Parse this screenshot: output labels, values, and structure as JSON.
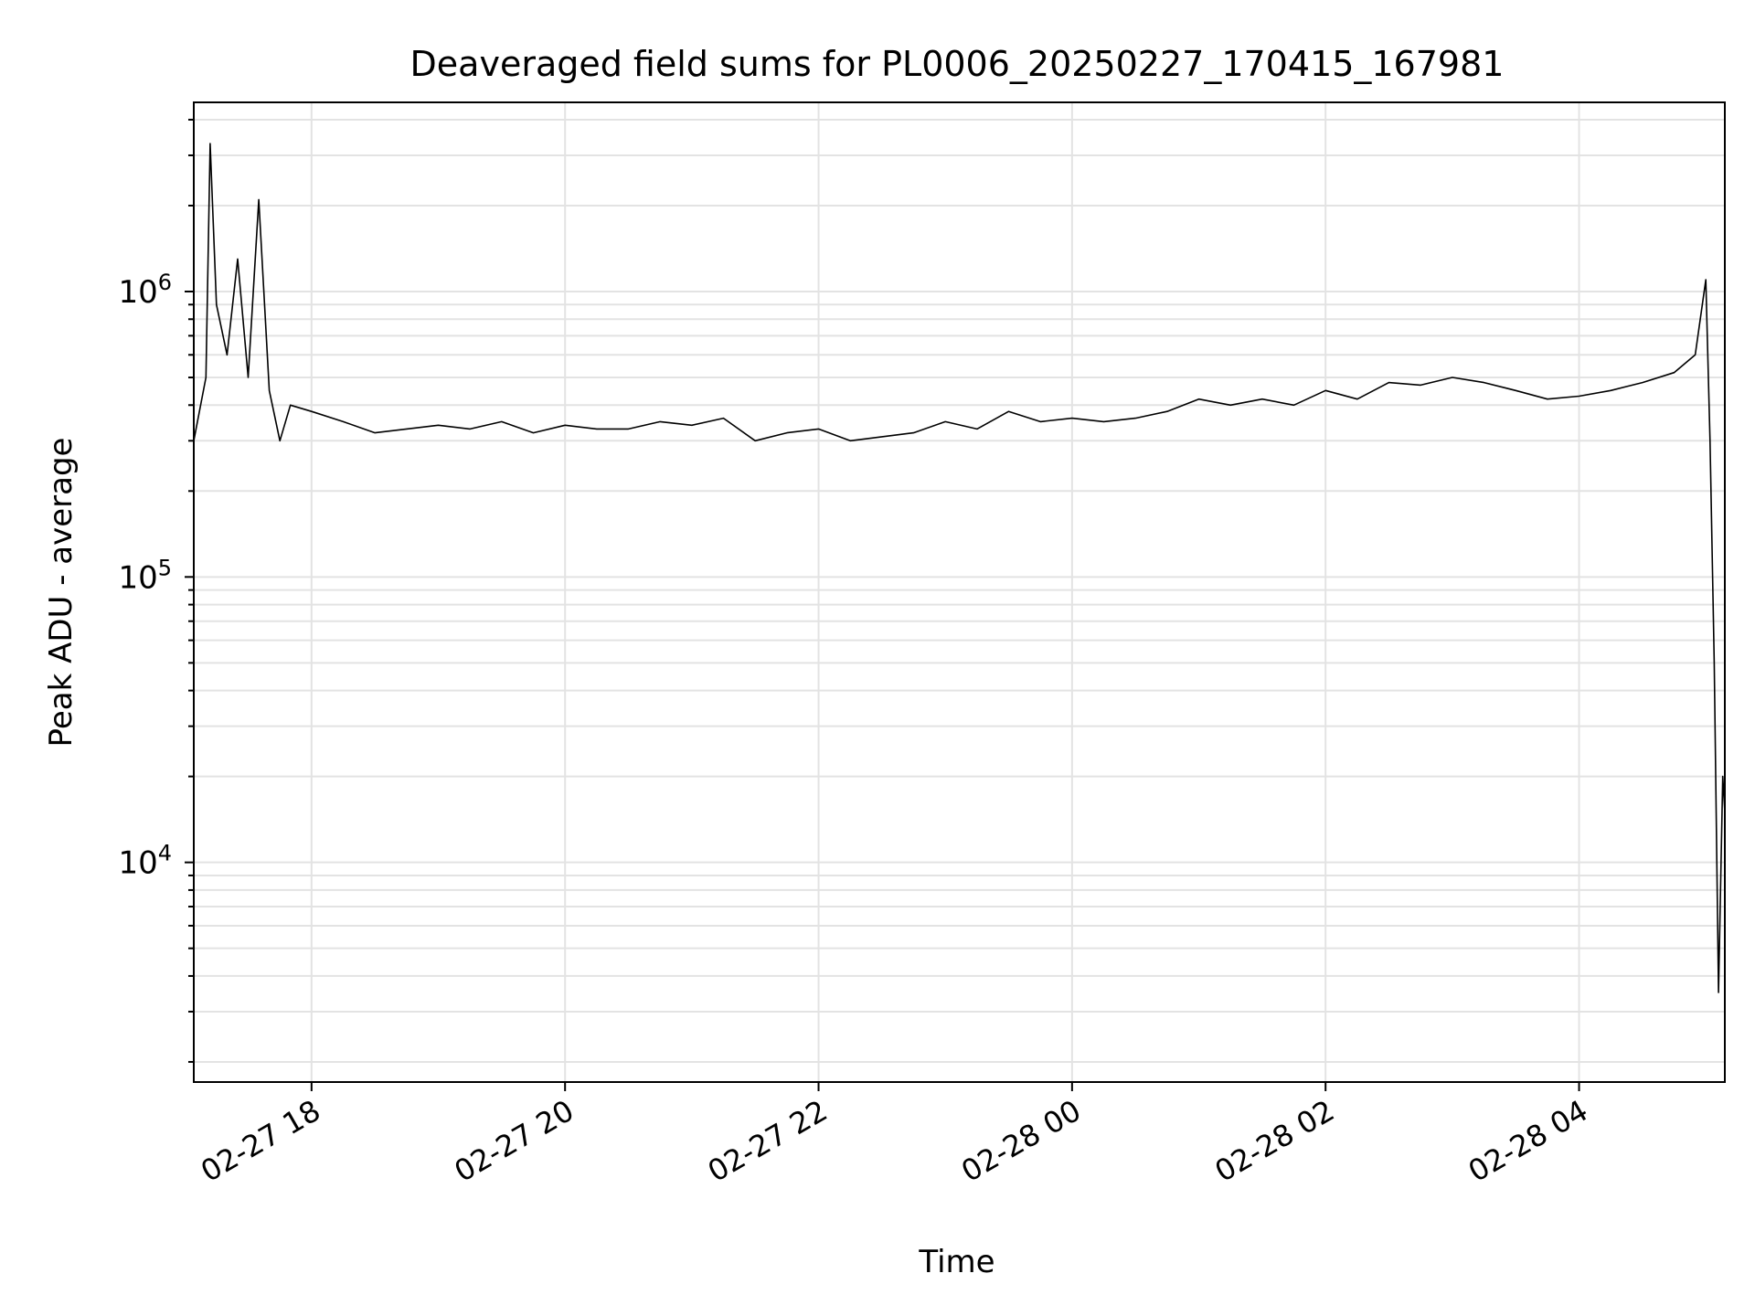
{
  "chart_data": {
    "type": "line",
    "title": "Deaveraged field sums for PL0006_20250227_170415_167981",
    "xlabel": "Time",
    "ylabel": "Peak ADU - average",
    "x_range": [
      "2025-02-27T17:04:15",
      "2025-02-28T05:09:00"
    ],
    "y_range": [
      1700,
      4600000
    ],
    "y_scale": "log",
    "grid": true,
    "line_color": "#000000",
    "x_ticks": [
      {
        "value": "2025-02-27T18:00:00",
        "label": "02-27 18"
      },
      {
        "value": "2025-02-27T20:00:00",
        "label": "02-27 20"
      },
      {
        "value": "2025-02-27T22:00:00",
        "label": "02-27 22"
      },
      {
        "value": "2025-02-28T00:00:00",
        "label": "02-28 00"
      },
      {
        "value": "2025-02-28T02:00:00",
        "label": "02-28 02"
      },
      {
        "value": "2025-02-28T04:00:00",
        "label": "02-28 04"
      }
    ],
    "y_ticks": [
      {
        "value": 10000,
        "base": "10",
        "exp": "4"
      },
      {
        "value": 100000,
        "base": "10",
        "exp": "5"
      },
      {
        "value": 1000000,
        "base": "10",
        "exp": "6"
      }
    ],
    "series": [
      {
        "x": [
          "2025-02-27T17:04:15",
          "2025-02-27T17:10:00",
          "2025-02-27T17:12:00",
          "2025-02-27T17:15:00",
          "2025-02-27T17:20:00",
          "2025-02-27T17:25:00",
          "2025-02-27T17:30:00",
          "2025-02-27T17:35:00",
          "2025-02-27T17:40:00",
          "2025-02-27T17:45:00",
          "2025-02-27T17:50:00",
          "2025-02-27T18:00:00",
          "2025-02-27T18:15:00",
          "2025-02-27T18:30:00",
          "2025-02-27T18:45:00",
          "2025-02-27T19:00:00",
          "2025-02-27T19:15:00",
          "2025-02-27T19:30:00",
          "2025-02-27T19:45:00",
          "2025-02-27T20:00:00",
          "2025-02-27T20:15:00",
          "2025-02-27T20:30:00",
          "2025-02-27T20:45:00",
          "2025-02-27T21:00:00",
          "2025-02-27T21:15:00",
          "2025-02-27T21:30:00",
          "2025-02-27T21:45:00",
          "2025-02-27T22:00:00",
          "2025-02-27T22:15:00",
          "2025-02-27T22:30:00",
          "2025-02-27T22:45:00",
          "2025-02-27T23:00:00",
          "2025-02-27T23:15:00",
          "2025-02-27T23:30:00",
          "2025-02-27T23:45:00",
          "2025-02-28T00:00:00",
          "2025-02-28T00:15:00",
          "2025-02-28T00:30:00",
          "2025-02-28T00:45:00",
          "2025-02-28T01:00:00",
          "2025-02-28T01:15:00",
          "2025-02-28T01:30:00",
          "2025-02-28T01:45:00",
          "2025-02-28T02:00:00",
          "2025-02-28T02:15:00",
          "2025-02-28T02:30:00",
          "2025-02-28T02:45:00",
          "2025-02-28T03:00:00",
          "2025-02-28T03:15:00",
          "2025-02-28T03:30:00",
          "2025-02-28T03:45:00",
          "2025-02-28T04:00:00",
          "2025-02-28T04:15:00",
          "2025-02-28T04:30:00",
          "2025-02-28T04:45:00",
          "2025-02-28T04:55:00",
          "2025-02-28T05:00:00",
          "2025-02-28T05:02:00",
          "2025-02-28T05:04:00",
          "2025-02-28T05:06:00",
          "2025-02-28T05:08:00",
          "2025-02-28T05:09:00"
        ],
        "y": [
          300000,
          500000,
          3300000,
          900000,
          600000,
          1300000,
          500000,
          2100000,
          450000,
          300000,
          400000,
          380000,
          350000,
          320000,
          330000,
          340000,
          330000,
          350000,
          320000,
          340000,
          330000,
          330000,
          350000,
          340000,
          360000,
          300000,
          320000,
          330000,
          300000,
          310000,
          320000,
          350000,
          330000,
          380000,
          350000,
          360000,
          350000,
          360000,
          380000,
          420000,
          400000,
          420000,
          400000,
          450000,
          420000,
          480000,
          470000,
          500000,
          480000,
          450000,
          420000,
          430000,
          450000,
          480000,
          520000,
          600000,
          1100000,
          300000,
          50000,
          3500,
          20000,
          15000
        ]
      }
    ]
  }
}
